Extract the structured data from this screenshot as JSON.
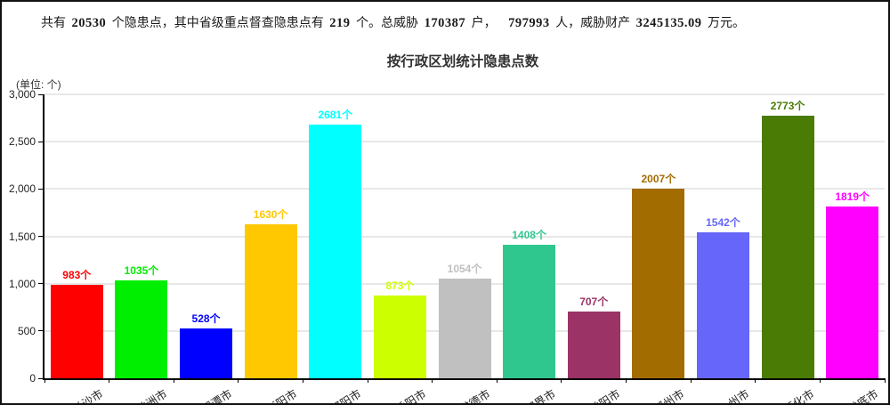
{
  "summary": {
    "segments": [
      {
        "text": "共有",
        "bold": false
      },
      {
        "text": "20530",
        "bold": true
      },
      {
        "text": "个隐患点，其中省级重点督查隐患点有",
        "bold": false
      },
      {
        "text": "219",
        "bold": true
      },
      {
        "text": "个。总威胁",
        "bold": false
      },
      {
        "text": "170387",
        "bold": true
      },
      {
        "text": "户，　",
        "bold": false
      },
      {
        "text": "797993",
        "bold": true
      },
      {
        "text": "人，威胁财产",
        "bold": false
      },
      {
        "text": "3245135.09",
        "bold": true
      },
      {
        "text": "万元。",
        "bold": false
      }
    ]
  },
  "chart_data": {
    "type": "bar",
    "title": "按行政区划统计隐患点数",
    "unit_label": "(单位: 个)",
    "categories": [
      "长沙市",
      "株洲市",
      "湘潭市",
      "衡阳市",
      "邵阳市",
      "岳阳市",
      "常德市",
      "张家界市",
      "益阳市",
      "郴州市",
      "永州市",
      "怀化市",
      "娄底市"
    ],
    "values": [
      983,
      1035,
      528,
      1630,
      2681,
      873,
      1054,
      1408,
      707,
      2007,
      1542,
      2773,
      1819
    ],
    "bar_colors": [
      "#ff0000",
      "#00ee00",
      "#0000ff",
      "#ffc800",
      "#00ffff",
      "#ccff00",
      "#c0c0c0",
      "#30c78f",
      "#9b3366",
      "#a36c00",
      "#6666fa",
      "#4a7b04",
      "#ff00ff"
    ],
    "value_suffix": "个",
    "xlabel": "",
    "ylabel": "",
    "ylim": [
      0,
      3000
    ],
    "ytick_interval": 500,
    "grid": true,
    "legend": "none"
  }
}
